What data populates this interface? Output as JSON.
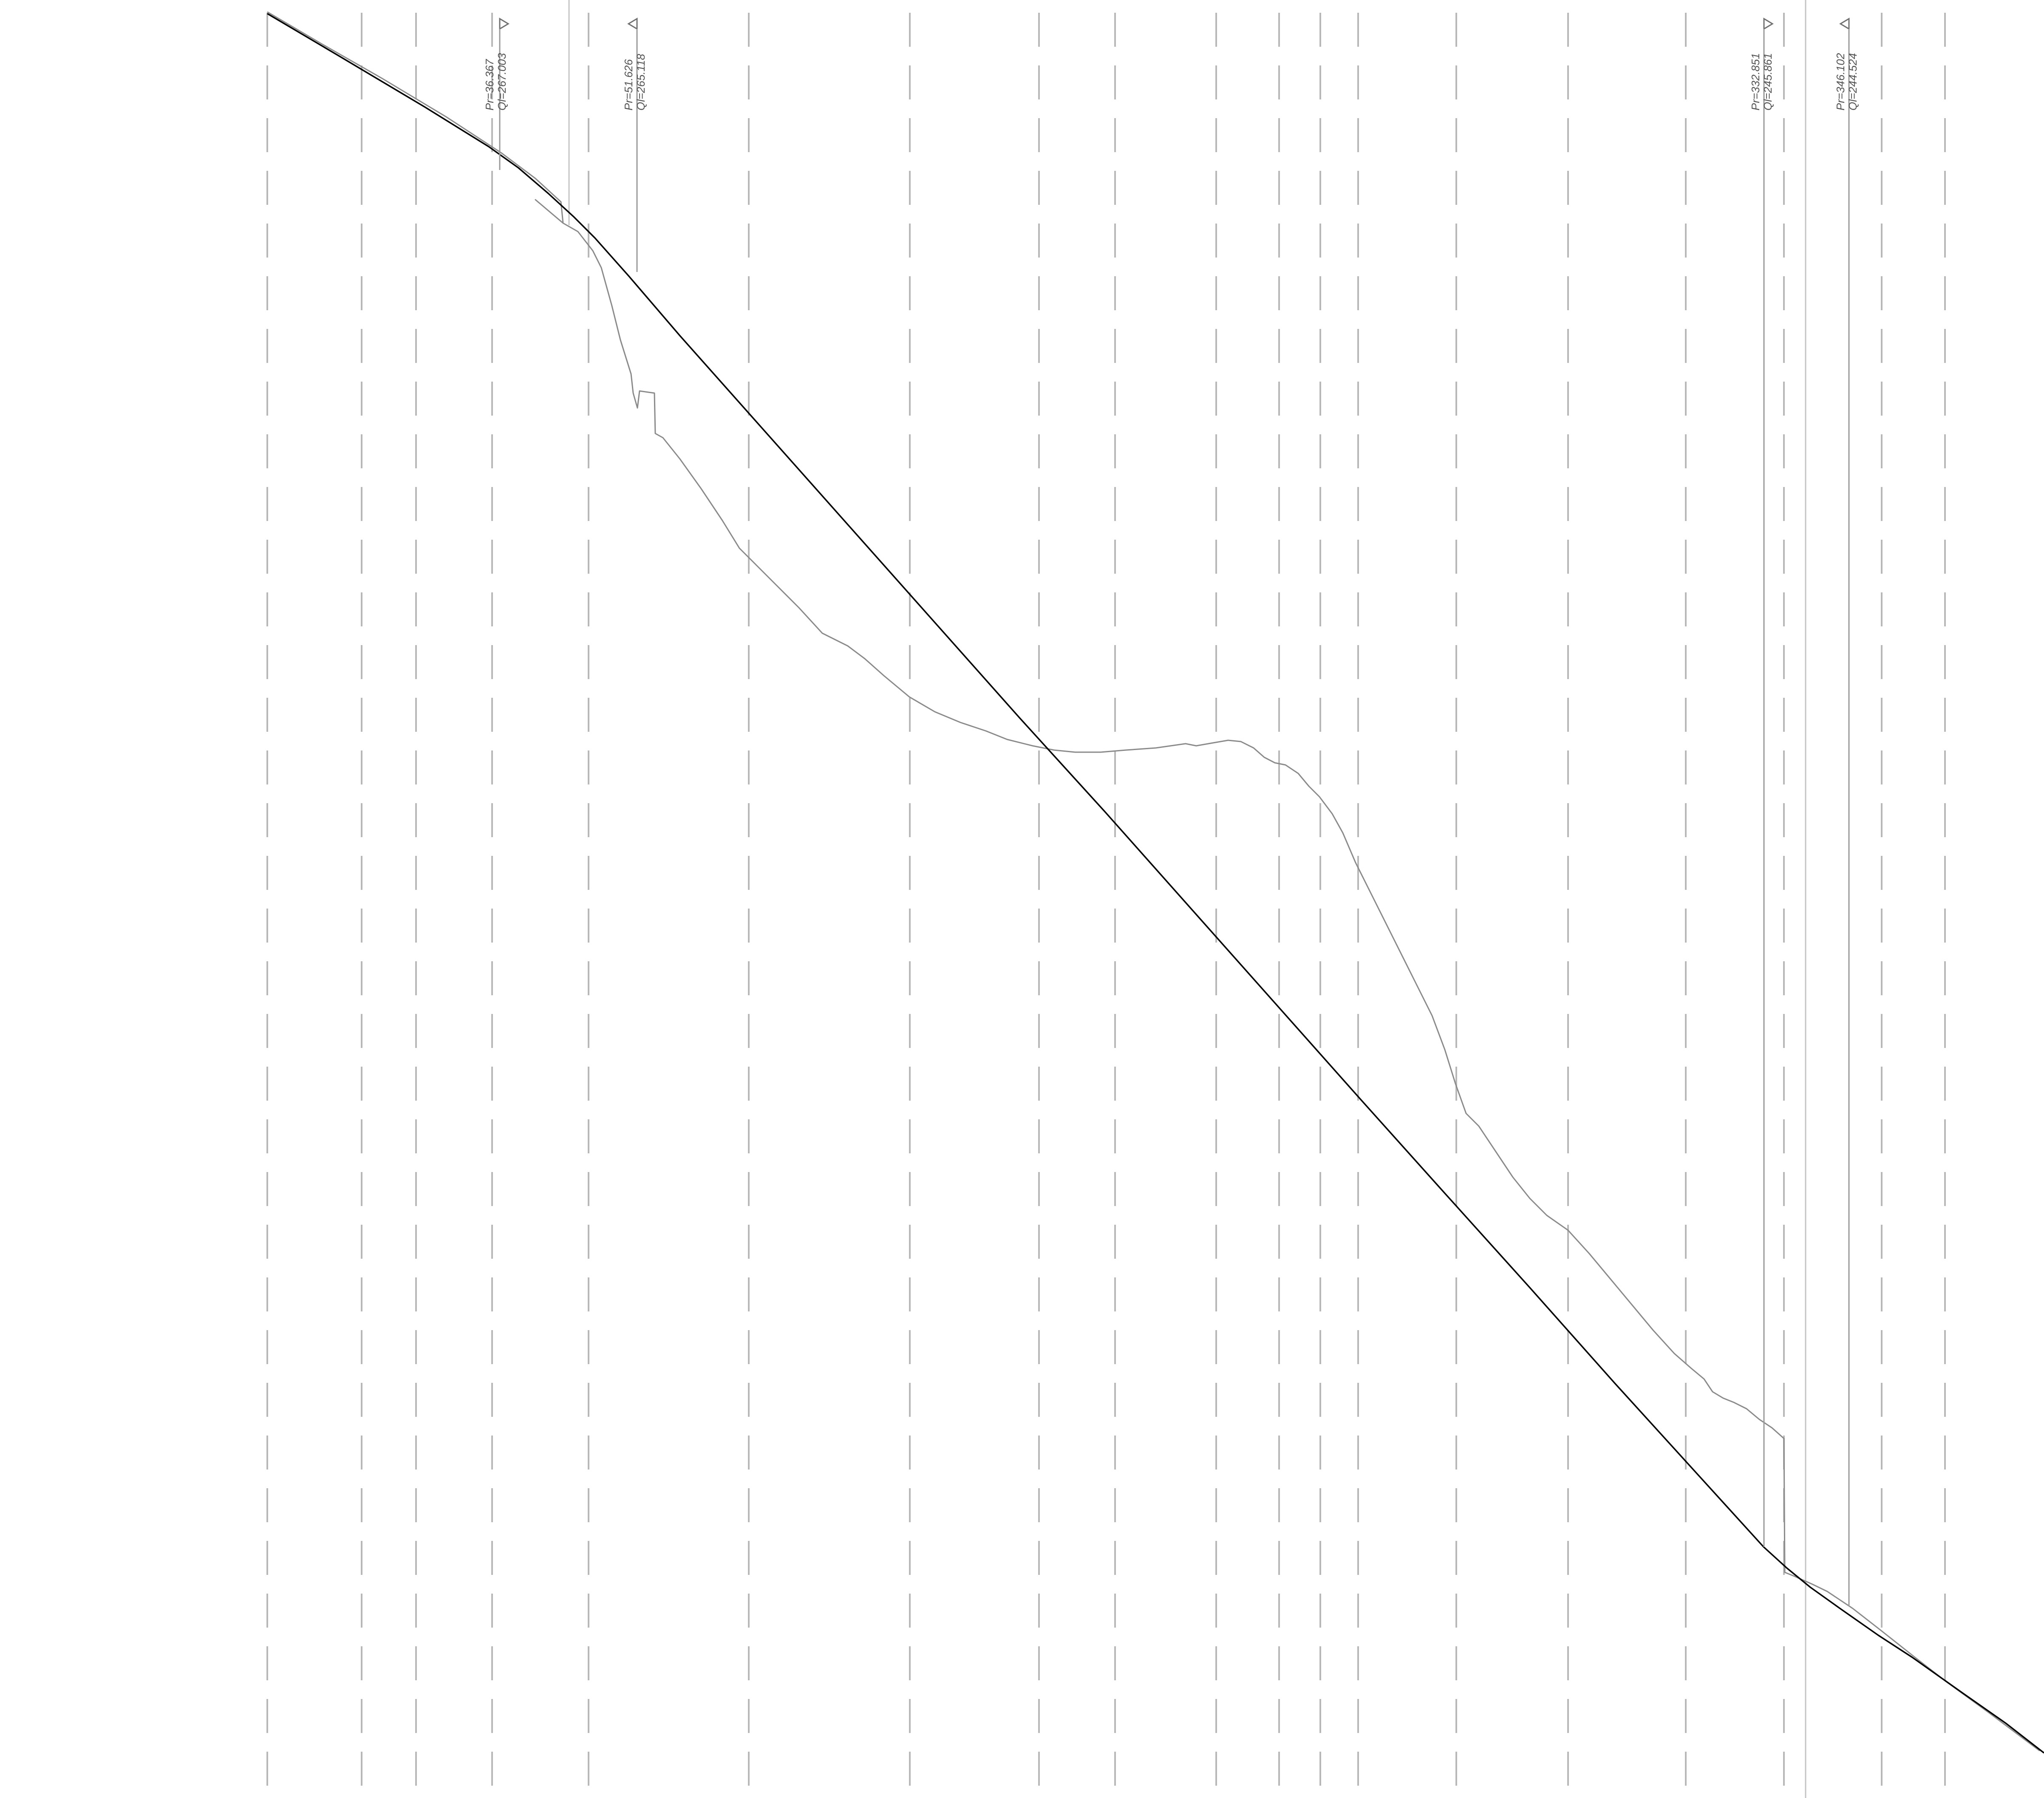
{
  "colors": {
    "background": "#ffffff",
    "design_line": "#000000",
    "ground_line": "#8a8a8a",
    "dashed_station": "#b8b8b8",
    "annotation": "#707070"
  },
  "annotations": [
    {
      "id": "pc-1",
      "pk_text": "Pr=36.367",
      "elev_text": "Ql=267.003"
    },
    {
      "id": "pc-2",
      "pk_text": "Pr=51.626",
      "elev_text": "Ql=265.118"
    },
    {
      "id": "pc-3",
      "pk_text": "Pr=332.851",
      "elev_text": "Ql=245.861"
    },
    {
      "id": "pc-4",
      "pk_text": "Pr=346.102",
      "elev_text": "Ql=244.524"
    }
  ]
}
